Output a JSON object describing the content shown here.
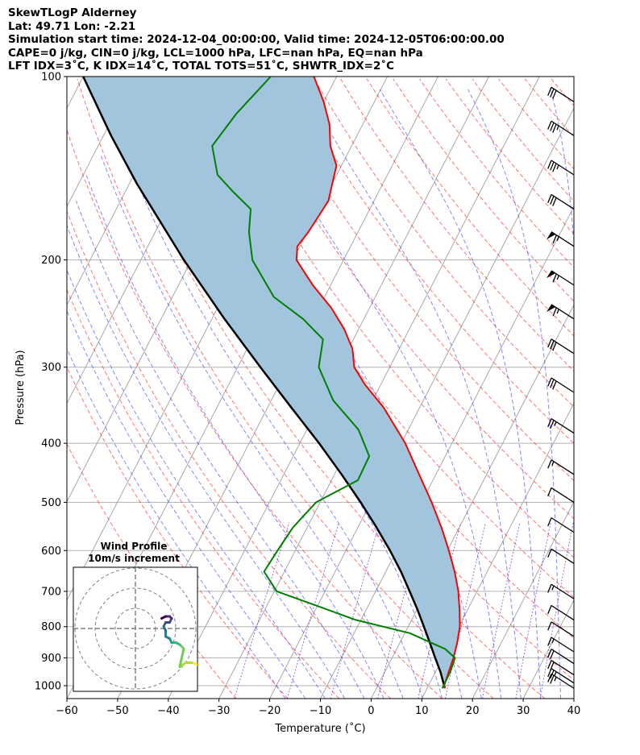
{
  "header": {
    "title": "SkewTLogP Alderney",
    "location": "Lat: 49.71   Lon: -2.21",
    "times": "Simulation start time: 2024-12-04_00:00:00, Valid time: 2024-12-05T06:00:00.00",
    "params": "CAPE=0 j/kg, CIN=0 j/kg, LCL=1000 hPa, LFC=nan hPa, EQ=nan hPa",
    "indices": "LFT IDX=3˚C, K IDX=14˚C, TOTAL TOTS=51˚C, SHWTR_IDX=2˚C"
  },
  "chart_data": [
    {
      "type": "line",
      "subtype": "skew-T log-P diagram",
      "xlabel": "Temperature (˚C)",
      "ylabel": "Pressure (hPa)",
      "xlim": [
        -60,
        40
      ],
      "ylim": [
        1050,
        100
      ],
      "y_scale": "log",
      "x_ticks": [
        -60,
        -50,
        -40,
        -30,
        -20,
        -10,
        0,
        10,
        20,
        30,
        40
      ],
      "y_ticks": [
        100,
        200,
        300,
        400,
        500,
        600,
        700,
        800,
        900,
        1000
      ],
      "grid": true,
      "series": [
        {
          "role": "temperature",
          "color": "#ff0000",
          "points": [
            {
              "p": 1010,
              "t": 13.5
            },
            {
              "p": 1000,
              "t": 13.1
            },
            {
              "p": 950,
              "t": 12.6
            },
            {
              "p": 900,
              "t": 12.1
            },
            {
              "p": 850,
              "t": 11.3
            },
            {
              "p": 800,
              "t": 10.2
            },
            {
              "p": 750,
              "t": 8.4
            },
            {
              "p": 700,
              "t": 6.3
            },
            {
              "p": 650,
              "t": 3.6
            },
            {
              "p": 600,
              "t": 0.3
            },
            {
              "p": 550,
              "t": -3.5
            },
            {
              "p": 500,
              "t": -8.0
            },
            {
              "p": 450,
              "t": -13.3
            },
            {
              "p": 400,
              "t": -19.2
            },
            {
              "p": 350,
              "t": -27.0
            },
            {
              "p": 320,
              "t": -33.2
            },
            {
              "p": 300,
              "t": -37.0
            },
            {
              "p": 280,
              "t": -39.2
            },
            {
              "p": 260,
              "t": -42.8
            },
            {
              "p": 240,
              "t": -47.5
            },
            {
              "p": 220,
              "t": -53.5
            },
            {
              "p": 200,
              "t": -59.3
            },
            {
              "p": 190,
              "t": -60.5
            },
            {
              "p": 180,
              "t": -59.8
            },
            {
              "p": 160,
              "t": -59.0
            },
            {
              "p": 140,
              "t": -61.0
            },
            {
              "p": 130,
              "t": -64.2
            },
            {
              "p": 120,
              "t": -66.5
            },
            {
              "p": 110,
              "t": -70.0
            },
            {
              "p": 100,
              "t": -74.5
            }
          ]
        },
        {
          "role": "dewpoint",
          "color": "#008000",
          "points": [
            {
              "p": 1010,
              "t": 13.0
            },
            {
              "p": 950,
              "t": 12.9
            },
            {
              "p": 900,
              "t": 12.4
            },
            {
              "p": 870,
              "t": 9.5
            },
            {
              "p": 820,
              "t": 1.0
            },
            {
              "p": 780,
              "t": -11.0
            },
            {
              "p": 740,
              "t": -20.0
            },
            {
              "p": 700,
              "t": -29.5
            },
            {
              "p": 650,
              "t": -34.0
            },
            {
              "p": 600,
              "t": -33.5
            },
            {
              "p": 550,
              "t": -32.8
            },
            {
              "p": 500,
              "t": -30.8
            },
            {
              "p": 460,
              "t": -24.8
            },
            {
              "p": 420,
              "t": -25.0
            },
            {
              "p": 380,
              "t": -29.8
            },
            {
              "p": 340,
              "t": -37.8
            },
            {
              "p": 300,
              "t": -44.0
            },
            {
              "p": 270,
              "t": -46.0
            },
            {
              "p": 250,
              "t": -52.0
            },
            {
              "p": 230,
              "t": -60.0
            },
            {
              "p": 200,
              "t": -68.0
            },
            {
              "p": 180,
              "t": -71.5
            },
            {
              "p": 165,
              "t": -73.5
            },
            {
              "p": 155,
              "t": -78.5
            },
            {
              "p": 145,
              "t": -83.5
            },
            {
              "p": 130,
              "t": -87.5
            },
            {
              "p": 115,
              "t": -86.0
            },
            {
              "p": 100,
              "t": -83.0
            }
          ]
        },
        {
          "role": "parcel profile",
          "color": "#000000",
          "points": [
            {
              "p": 1010,
              "t": 13.5
            },
            {
              "p": 950,
              "t": 11.0
            },
            {
              "p": 900,
              "t": 8.5
            },
            {
              "p": 850,
              "t": 5.9
            },
            {
              "p": 800,
              "t": 3.1
            },
            {
              "p": 750,
              "t": 0.1
            },
            {
              "p": 700,
              "t": -3.3
            },
            {
              "p": 650,
              "t": -7.0
            },
            {
              "p": 600,
              "t": -11.3
            },
            {
              "p": 550,
              "t": -16.3
            },
            {
              "p": 500,
              "t": -22.0
            },
            {
              "p": 450,
              "t": -28.6
            },
            {
              "p": 400,
              "t": -36.2
            },
            {
              "p": 350,
              "t": -45.2
            },
            {
              "p": 300,
              "t": -55.5
            },
            {
              "p": 250,
              "t": -67.5
            },
            {
              "p": 200,
              "t": -81.5
            },
            {
              "p": 150,
              "t": -98.5
            },
            {
              "p": 125,
              "t": -108.5
            },
            {
              "p": 100,
              "t": -120.0
            }
          ]
        }
      ],
      "shaded_region": {
        "between": [
          "parcel profile",
          "temperature"
        ],
        "color": "#a2c5de"
      },
      "wind_barbs": [
        {
          "p": 1010,
          "speed_kt": 25
        },
        {
          "p": 990,
          "speed_kt": 25
        },
        {
          "p": 960,
          "speed_kt": 20
        },
        {
          "p": 920,
          "speed_kt": 20
        },
        {
          "p": 880,
          "speed_kt": 15
        },
        {
          "p": 830,
          "speed_kt": 10
        },
        {
          "p": 780,
          "speed_kt": 10
        },
        {
          "p": 720,
          "speed_kt": 15
        },
        {
          "p": 630,
          "speed_kt": 10
        },
        {
          "p": 560,
          "speed_kt": 10
        },
        {
          "p": 500,
          "speed_kt": 10
        },
        {
          "p": 450,
          "speed_kt": 15
        },
        {
          "p": 385,
          "speed_kt": 25
        },
        {
          "p": 330,
          "speed_kt": 30
        },
        {
          "p": 285,
          "speed_kt": 30
        },
        {
          "p": 250,
          "speed_kt": 65
        },
        {
          "p": 220,
          "speed_kt": 65
        },
        {
          "p": 190,
          "speed_kt": 65
        },
        {
          "p": 165,
          "speed_kt": 30
        },
        {
          "p": 145,
          "speed_kt": 35
        },
        {
          "p": 125,
          "speed_kt": 35
        },
        {
          "p": 110,
          "speed_kt": 30
        }
      ]
    },
    {
      "type": "line",
      "subtype": "hodograph",
      "title": "Wind Profile",
      "subtitle": "10m/s increment",
      "rings_ms": [
        10,
        20,
        30
      ],
      "colormap": "viridis",
      "points": [
        {
          "u": 34,
          "v": -21
        },
        {
          "u": 31,
          "v": -18
        },
        {
          "u": 28,
          "v": -17
        },
        {
          "u": 25,
          "v": -17
        },
        {
          "u": 22,
          "v": -19
        },
        {
          "u": 24,
          "v": -10
        },
        {
          "u": 22,
          "v": -8
        },
        {
          "u": 20,
          "v": -7
        },
        {
          "u": 18,
          "v": -7
        },
        {
          "u": 17,
          "v": -5
        },
        {
          "u": 15,
          "v": -4
        },
        {
          "u": 15,
          "v": -1
        },
        {
          "u": 14,
          "v": 1
        },
        {
          "u": 15,
          "v": 3
        },
        {
          "u": 17,
          "v": 3
        },
        {
          "u": 18,
          "v": 5
        },
        {
          "u": 17,
          "v": 6
        },
        {
          "u": 15,
          "v": 6
        },
        {
          "u": 13,
          "v": 5
        }
      ]
    }
  ]
}
